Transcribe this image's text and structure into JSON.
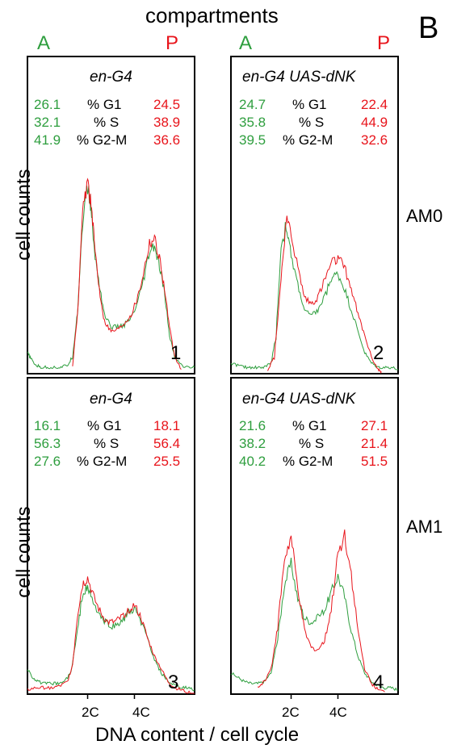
{
  "figure": {
    "panel_letter": "B",
    "top_label": "compartments",
    "compartment_left": "A",
    "compartment_right": "P",
    "ylabel": "cell counts",
    "xlabel": "DNA content / cell cycle",
    "row_labels": [
      "AM0",
      "AM1"
    ],
    "colors": {
      "anterior": "#2e9e3e",
      "posterior": "#e8141b",
      "text": "#000000"
    }
  },
  "chart_data": [
    {
      "type": "line",
      "panel_number": "1",
      "title": "en-G4",
      "row": "AM0",
      "stats": [
        {
          "A": "26.1",
          "label": "% G1",
          "P": "24.5"
        },
        {
          "A": "32.1",
          "label": "% S",
          "P": "38.9"
        },
        {
          "A": "41.9",
          "label": "% G2-M",
          "P": "36.6"
        }
      ],
      "xticks": [],
      "ylim": [
        0,
        100
      ],
      "series": [
        {
          "key": "A",
          "color": "#2e9e3e",
          "x": [
            0.0,
            0.02,
            0.05,
            0.08,
            0.12,
            0.16,
            0.2,
            0.24,
            0.27,
            0.3,
            0.33,
            0.36,
            0.38,
            0.4,
            0.43,
            0.46,
            0.5,
            0.54,
            0.58,
            0.62,
            0.66,
            0.7,
            0.73,
            0.76,
            0.79,
            0.82,
            0.85,
            0.88,
            0.92,
            0.96,
            1.0
          ],
          "y": [
            10,
            7,
            4,
            3,
            3,
            3,
            3,
            4,
            8,
            30,
            72,
            88,
            78,
            58,
            42,
            28,
            22,
            22,
            23,
            26,
            33,
            46,
            57,
            60,
            50,
            38,
            18,
            8,
            4,
            3,
            3
          ]
        },
        {
          "key": "P",
          "color": "#e8141b",
          "x": [
            0.27,
            0.3,
            0.33,
            0.36,
            0.38,
            0.4,
            0.43,
            0.46,
            0.5,
            0.54,
            0.58,
            0.62,
            0.66,
            0.7,
            0.73,
            0.76,
            0.79,
            0.82,
            0.85,
            0.88,
            0.92
          ],
          "y": [
            4,
            28,
            75,
            92,
            80,
            62,
            40,
            25,
            20,
            21,
            24,
            28,
            36,
            50,
            62,
            64,
            55,
            40,
            22,
            8,
            2
          ]
        }
      ]
    },
    {
      "type": "line",
      "panel_number": "2",
      "title": "en-G4 UAS-dNK",
      "row": "AM0",
      "stats": [
        {
          "A": "24.7",
          "label": "% G1",
          "P": "22.4"
        },
        {
          "A": "35.8",
          "label": "% S",
          "P": "44.9"
        },
        {
          "A": "39.5",
          "label": "% G2-M",
          "P": "32.6"
        }
      ],
      "xticks": [],
      "ylim": [
        0,
        100
      ],
      "series": [
        {
          "key": "A",
          "color": "#2e9e3e",
          "x": [
            0.0,
            0.04,
            0.08,
            0.12,
            0.16,
            0.2,
            0.24,
            0.27,
            0.3,
            0.33,
            0.36,
            0.4,
            0.44,
            0.48,
            0.52,
            0.56,
            0.6,
            0.64,
            0.68,
            0.72,
            0.76,
            0.8,
            0.84,
            0.88,
            0.92,
            0.96,
            1.0
          ],
          "y": [
            5,
            4,
            3,
            3,
            3,
            3,
            5,
            18,
            60,
            70,
            55,
            42,
            30,
            27,
            30,
            36,
            45,
            47,
            40,
            30,
            20,
            10,
            5,
            3,
            3,
            3,
            2
          ]
        },
        {
          "key": "P",
          "color": "#e8141b",
          "x": [
            0.22,
            0.26,
            0.3,
            0.33,
            0.36,
            0.4,
            0.44,
            0.48,
            0.52,
            0.56,
            0.6,
            0.64,
            0.68,
            0.72,
            0.76,
            0.8,
            0.84,
            0.88,
            0.9
          ],
          "y": [
            2,
            8,
            45,
            72,
            66,
            50,
            36,
            33,
            36,
            44,
            52,
            54,
            50,
            40,
            28,
            18,
            8,
            2,
            1
          ]
        }
      ]
    },
    {
      "type": "line",
      "panel_number": "3",
      "title": "en-G4",
      "row": "AM1",
      "stats": [
        {
          "A": "16.1",
          "label": "% G1",
          "P": "18.1"
        },
        {
          "A": "56.3",
          "label": "% S",
          "P": "56.4"
        },
        {
          "A": "27.6",
          "label": "% G2-M",
          "P": "25.5"
        }
      ],
      "xticks": [
        {
          "label": "2C",
          "pos": 0.36
        },
        {
          "label": "4C",
          "pos": 0.64
        }
      ],
      "ylim": [
        0,
        100
      ],
      "series": [
        {
          "key": "A",
          "color": "#2e9e3e",
          "x": [
            0.0,
            0.03,
            0.06,
            0.1,
            0.14,
            0.18,
            0.22,
            0.26,
            0.3,
            0.33,
            0.36,
            0.4,
            0.44,
            0.48,
            0.52,
            0.56,
            0.6,
            0.64,
            0.68,
            0.72,
            0.76,
            0.8,
            0.84,
            0.88,
            0.92,
            0.96,
            1.0
          ],
          "y": [
            12,
            8,
            6,
            5,
            5,
            5,
            6,
            10,
            30,
            48,
            50,
            42,
            36,
            33,
            32,
            34,
            38,
            40,
            34,
            26,
            16,
            10,
            6,
            4,
            3,
            3,
            2
          ]
        },
        {
          "key": "P",
          "color": "#e8141b",
          "x": [
            0.0,
            0.05,
            0.1,
            0.15,
            0.2,
            0.24,
            0.27,
            0.3,
            0.33,
            0.36,
            0.4,
            0.44,
            0.48,
            0.52,
            0.56,
            0.6,
            0.64,
            0.68,
            0.72,
            0.76,
            0.8,
            0.84,
            0.88,
            0.92,
            0.96,
            1.0
          ],
          "y": [
            2,
            3,
            3,
            3,
            4,
            6,
            14,
            38,
            52,
            55,
            45,
            38,
            34,
            34,
            36,
            40,
            42,
            36,
            26,
            18,
            12,
            6,
            3,
            2,
            1,
            0
          ]
        }
      ]
    },
    {
      "type": "line",
      "panel_number": "4",
      "title": "en-G4 UAS-dNK",
      "row": "AM1",
      "stats": [
        {
          "A": "21.6",
          "label": "% G1",
          "P": "27.1"
        },
        {
          "A": "38.2",
          "label": "% S",
          "P": "21.4"
        },
        {
          "A": "40.2",
          "label": "% G2-M",
          "P": "51.5"
        }
      ],
      "xticks": [
        {
          "label": "2C",
          "pos": 0.36
        },
        {
          "label": "4C",
          "pos": 0.64
        }
      ],
      "ylim": [
        0,
        100
      ],
      "series": [
        {
          "key": "A",
          "color": "#2e9e3e",
          "x": [
            0.0,
            0.04,
            0.08,
            0.12,
            0.16,
            0.2,
            0.24,
            0.28,
            0.32,
            0.36,
            0.4,
            0.44,
            0.48,
            0.52,
            0.56,
            0.6,
            0.64,
            0.68,
            0.72,
            0.76,
            0.8,
            0.84,
            0.88,
            0.92,
            0.96,
            1.0
          ],
          "y": [
            10,
            8,
            6,
            5,
            5,
            6,
            10,
            26,
            52,
            62,
            45,
            36,
            34,
            36,
            40,
            48,
            56,
            46,
            30,
            18,
            10,
            6,
            4,
            3,
            3,
            2
          ]
        },
        {
          "key": "P",
          "color": "#e8141b",
          "x": [
            0.16,
            0.2,
            0.24,
            0.28,
            0.32,
            0.36,
            0.4,
            0.44,
            0.48,
            0.52,
            0.56,
            0.6,
            0.64,
            0.68,
            0.72,
            0.76,
            0.8,
            0.84,
            0.88,
            0.92
          ],
          "y": [
            3,
            6,
            12,
            32,
            64,
            74,
            50,
            30,
            22,
            21,
            25,
            40,
            66,
            76,
            56,
            30,
            12,
            5,
            2,
            1
          ]
        }
      ]
    }
  ]
}
